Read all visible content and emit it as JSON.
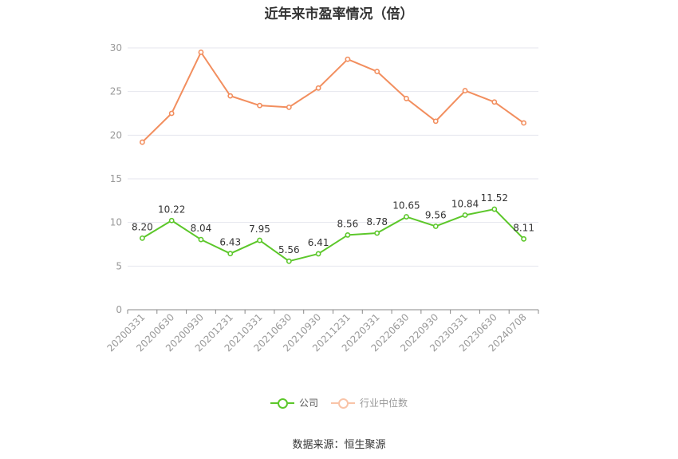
{
  "chart_data": {
    "type": "line",
    "title": "近年来市盈率情况（倍）",
    "categories": [
      "20200331",
      "20200630",
      "20200930",
      "20201231",
      "20210331",
      "20210630",
      "20210930",
      "20211231",
      "20220331",
      "20220630",
      "20220930",
      "20230331",
      "20230630",
      "20240708"
    ],
    "series": [
      {
        "name": "公司",
        "color": "#5cc72a",
        "values": [
          8.2,
          10.22,
          8.04,
          6.43,
          7.95,
          5.56,
          6.41,
          8.56,
          8.78,
          10.65,
          9.56,
          10.84,
          11.52,
          8.11
        ],
        "labels": [
          "8.20",
          "10.22",
          "8.04",
          "6.43",
          "7.95",
          "5.56",
          "6.41",
          "8.56",
          "8.78",
          "10.65",
          "9.56",
          "10.84",
          "11.52",
          "8.11"
        ]
      },
      {
        "name": "行业中位数",
        "color": "#f28e5e",
        "values": [
          19.2,
          22.5,
          29.5,
          24.5,
          23.4,
          23.2,
          25.4,
          28.7,
          27.3,
          24.2,
          21.6,
          25.1,
          23.8,
          21.4
        ]
      }
    ],
    "yticks": [
      "0",
      "5",
      "10",
      "15",
      "20",
      "25",
      "30"
    ],
    "ylim": [
      0,
      30
    ],
    "grid": true,
    "legend_position": "bottom"
  },
  "source": "数据来源：恒生聚源"
}
